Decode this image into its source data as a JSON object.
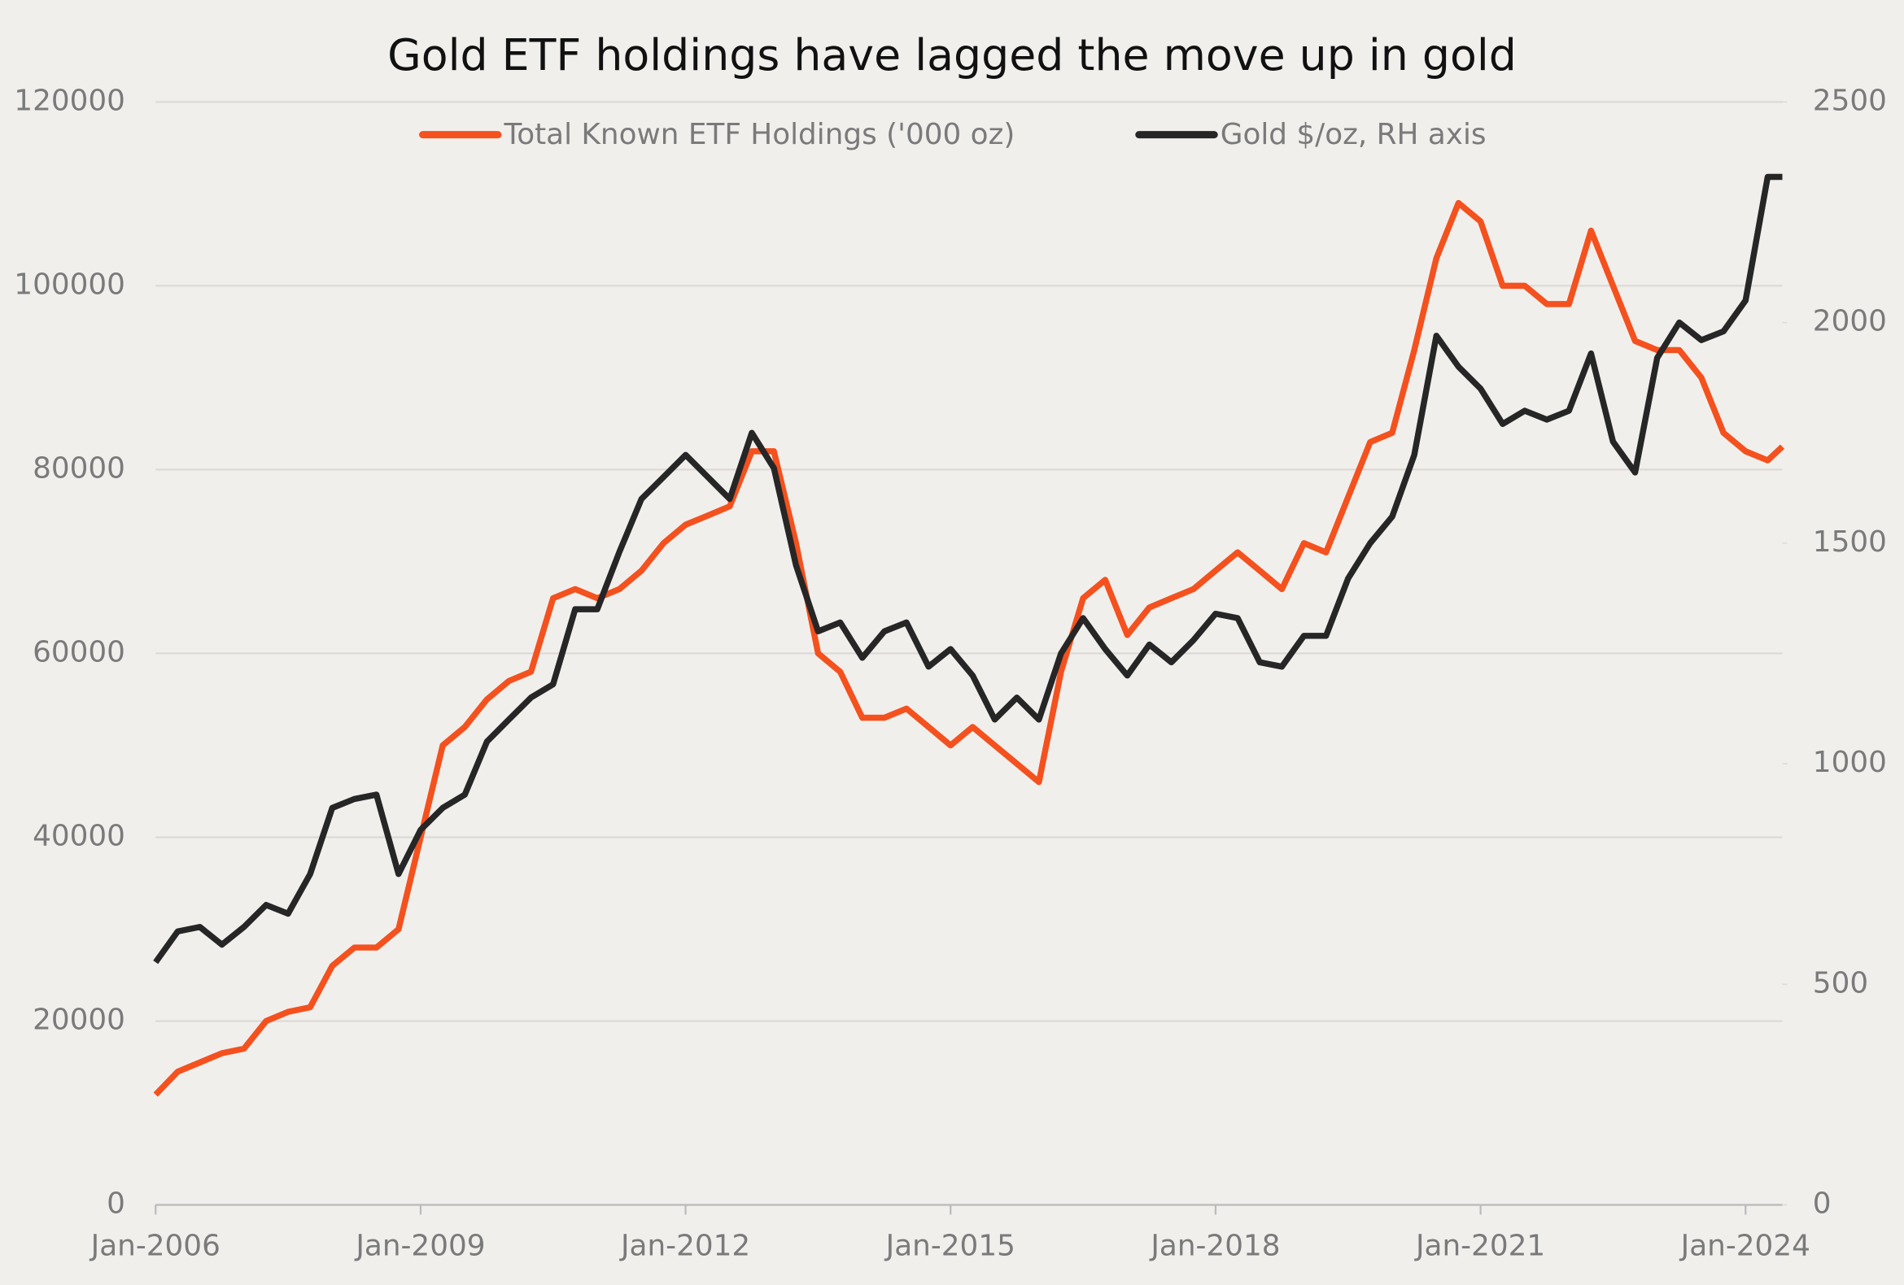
{
  "chart_data": {
    "type": "line",
    "title": "Gold ETF holdings have lagged the move up in gold",
    "x": [
      "Jan-2006",
      "Apr-2006",
      "Jul-2006",
      "Oct-2006",
      "Jan-2007",
      "Apr-2007",
      "Jul-2007",
      "Oct-2007",
      "Jan-2008",
      "Apr-2008",
      "Jul-2008",
      "Oct-2008",
      "Jan-2009",
      "Apr-2009",
      "Jul-2009",
      "Oct-2009",
      "Jan-2010",
      "Apr-2010",
      "Jul-2010",
      "Oct-2010",
      "Jan-2011",
      "Apr-2011",
      "Jul-2011",
      "Oct-2011",
      "Jan-2012",
      "Apr-2012",
      "Jul-2012",
      "Oct-2012",
      "Jan-2013",
      "Apr-2013",
      "Jul-2013",
      "Oct-2013",
      "Jan-2014",
      "Apr-2014",
      "Jul-2014",
      "Oct-2014",
      "Jan-2015",
      "Apr-2015",
      "Jul-2015",
      "Oct-2015",
      "Jan-2016",
      "Apr-2016",
      "Jul-2016",
      "Oct-2016",
      "Jan-2017",
      "Apr-2017",
      "Jul-2017",
      "Oct-2017",
      "Jan-2018",
      "Apr-2018",
      "Jul-2018",
      "Oct-2018",
      "Jan-2019",
      "Apr-2019",
      "Jul-2019",
      "Oct-2019",
      "Jan-2020",
      "Apr-2020",
      "Jul-2020",
      "Oct-2020",
      "Jan-2021",
      "Apr-2021",
      "Jul-2021",
      "Oct-2021",
      "Jan-2022",
      "Apr-2022",
      "Jul-2022",
      "Oct-2022",
      "Jan-2023",
      "Apr-2023",
      "Jul-2023",
      "Oct-2023",
      "Jan-2024",
      "Apr-2024",
      "Jun-2024"
    ],
    "series": [
      {
        "name": "Total Known ETF Holdings ('000 oz)",
        "color": "#f4511e",
        "axis": "y",
        "values": [
          12000,
          14500,
          15500,
          16500,
          17000,
          20000,
          21000,
          21500,
          26000,
          28000,
          28000,
          30000,
          40000,
          50000,
          52000,
          55000,
          57000,
          58000,
          66000,
          67000,
          66000,
          67000,
          69000,
          72000,
          74000,
          75000,
          76000,
          82000,
          82000,
          72000,
          60000,
          58000,
          53000,
          53000,
          54000,
          52000,
          50000,
          52000,
          50000,
          48000,
          46000,
          58000,
          66000,
          68000,
          62000,
          65000,
          66000,
          67000,
          69000,
          71000,
          69000,
          67000,
          72000,
          71000,
          77000,
          83000,
          84000,
          93000,
          103000,
          109000,
          107000,
          100000,
          100000,
          98000,
          98000,
          106000,
          100000,
          94000,
          93000,
          93000,
          90000,
          84000,
          82000,
          81000,
          82500
        ]
      },
      {
        "name": "Gold $/oz, RH axis",
        "color": "#262626",
        "axis": "y2",
        "values": [
          550,
          620,
          630,
          590,
          630,
          680,
          660,
          750,
          900,
          920,
          930,
          750,
          850,
          900,
          930,
          1050,
          1100,
          1150,
          1180,
          1350,
          1350,
          1480,
          1600,
          1650,
          1700,
          1650,
          1600,
          1750,
          1670,
          1450,
          1300,
          1320,
          1240,
          1300,
          1320,
          1220,
          1260,
          1200,
          1100,
          1150,
          1100,
          1250,
          1330,
          1260,
          1200,
          1270,
          1230,
          1280,
          1340,
          1330,
          1230,
          1220,
          1290,
          1290,
          1420,
          1500,
          1560,
          1700,
          1970,
          1900,
          1850,
          1770,
          1800,
          1780,
          1800,
          1930,
          1730,
          1660,
          1920,
          2000,
          1960,
          1980,
          2050,
          2330,
          2330
        ]
      }
    ],
    "xlim": [
      "Jan-2006",
      "Jun-2024"
    ],
    "xticks": [
      "Jan-2006",
      "Jan-2009",
      "Jan-2012",
      "Jan-2015",
      "Jan-2018",
      "Jan-2021",
      "Jan-2024"
    ],
    "ylim": [
      0,
      120000
    ],
    "yticks": [
      0,
      20000,
      40000,
      60000,
      80000,
      100000,
      120000
    ],
    "y2lim": [
      0,
      2500
    ],
    "y2ticks": [
      0,
      500,
      1000,
      1500,
      2000,
      2500
    ],
    "grid": true,
    "legend": "top"
  }
}
